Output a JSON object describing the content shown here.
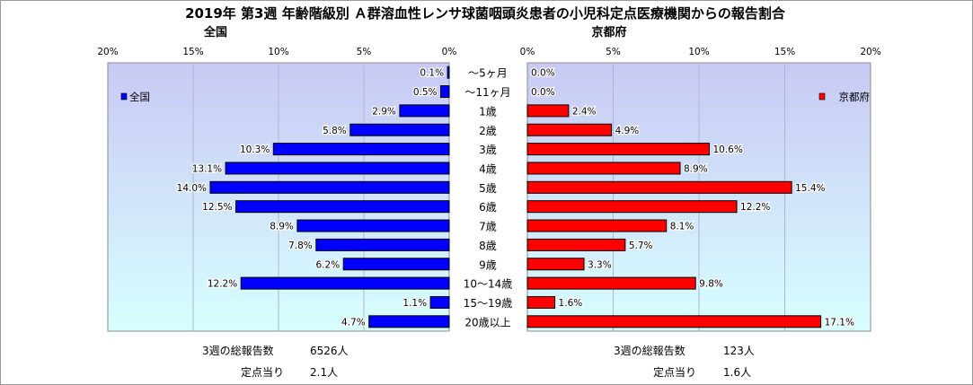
{
  "title": "2019年 第3週 年齢階級別 Ａ群溶血性レンサ球菌咽頭炎患者の小児科定点医療機関からの報告割合",
  "colors": {
    "left_bar": "#0000ff",
    "right_bar": "#ff0000",
    "plot_top": "#c9c9f4",
    "plot_bottom": "#d7ffff",
    "grid": "#b4b4c8"
  },
  "chart_data": [
    {
      "type": "bar",
      "orientation": "horizontal",
      "direction": "right-to-left",
      "title": "全国",
      "legend": "全国",
      "legend_position": "top-left",
      "grid": true,
      "xlim": [
        0,
        20
      ],
      "ticks": [
        "20%",
        "15%",
        "10%",
        "5%",
        "0%"
      ],
      "tick_values": [
        20,
        15,
        10,
        5,
        0
      ],
      "categories": [
        "～5ヶ月",
        "～11ヶ月",
        "1歳",
        "2歳",
        "3歳",
        "4歳",
        "5歳",
        "6歳",
        "7歳",
        "8歳",
        "9歳",
        "10～14歳",
        "15～19歳",
        "20歳以上"
      ],
      "values": [
        0.1,
        0.5,
        2.9,
        5.8,
        10.3,
        13.1,
        14.0,
        12.5,
        8.9,
        7.8,
        6.2,
        12.2,
        1.1,
        4.7
      ],
      "labels": [
        "0.1%",
        "0.5%",
        "2.9%",
        "5.8%",
        "10.3%",
        "13.1%",
        "14.0%",
        "12.5%",
        "8.9%",
        "7.8%",
        "6.2%",
        "12.2%",
        "1.1%",
        "4.7%"
      ]
    },
    {
      "type": "bar",
      "orientation": "horizontal",
      "direction": "left-to-right",
      "title": "京都府",
      "legend": "京都府",
      "legend_position": "top-right",
      "grid": true,
      "xlim": [
        0,
        20
      ],
      "ticks": [
        "0%",
        "5%",
        "10%",
        "15%",
        "20%"
      ],
      "tick_values": [
        0,
        5,
        10,
        15,
        20
      ],
      "categories": [
        "～5ヶ月",
        "～11ヶ月",
        "1歳",
        "2歳",
        "3歳",
        "4歳",
        "5歳",
        "6歳",
        "7歳",
        "8歳",
        "9歳",
        "10～14歳",
        "15～19歳",
        "20歳以上"
      ],
      "values": [
        0.0,
        0.0,
        2.4,
        4.9,
        10.6,
        8.9,
        15.4,
        12.2,
        8.1,
        5.7,
        3.3,
        9.8,
        1.6,
        17.1
      ],
      "labels": [
        "0.0%",
        "0.0%",
        "2.4%",
        "4.9%",
        "10.6%",
        "8.9%",
        "15.4%",
        "12.2%",
        "8.1%",
        "5.7%",
        "3.3%",
        "9.8%",
        "1.6%",
        "17.1%"
      ]
    }
  ],
  "summary": {
    "left": {
      "total_label": "3週の総報告数",
      "total_value": "6526人",
      "per_label": "定点当り",
      "per_value": "2.1人"
    },
    "right": {
      "total_label": "3週の総報告数",
      "total_value": "123人",
      "per_label": "定点当り",
      "per_value": "1.6人"
    }
  }
}
